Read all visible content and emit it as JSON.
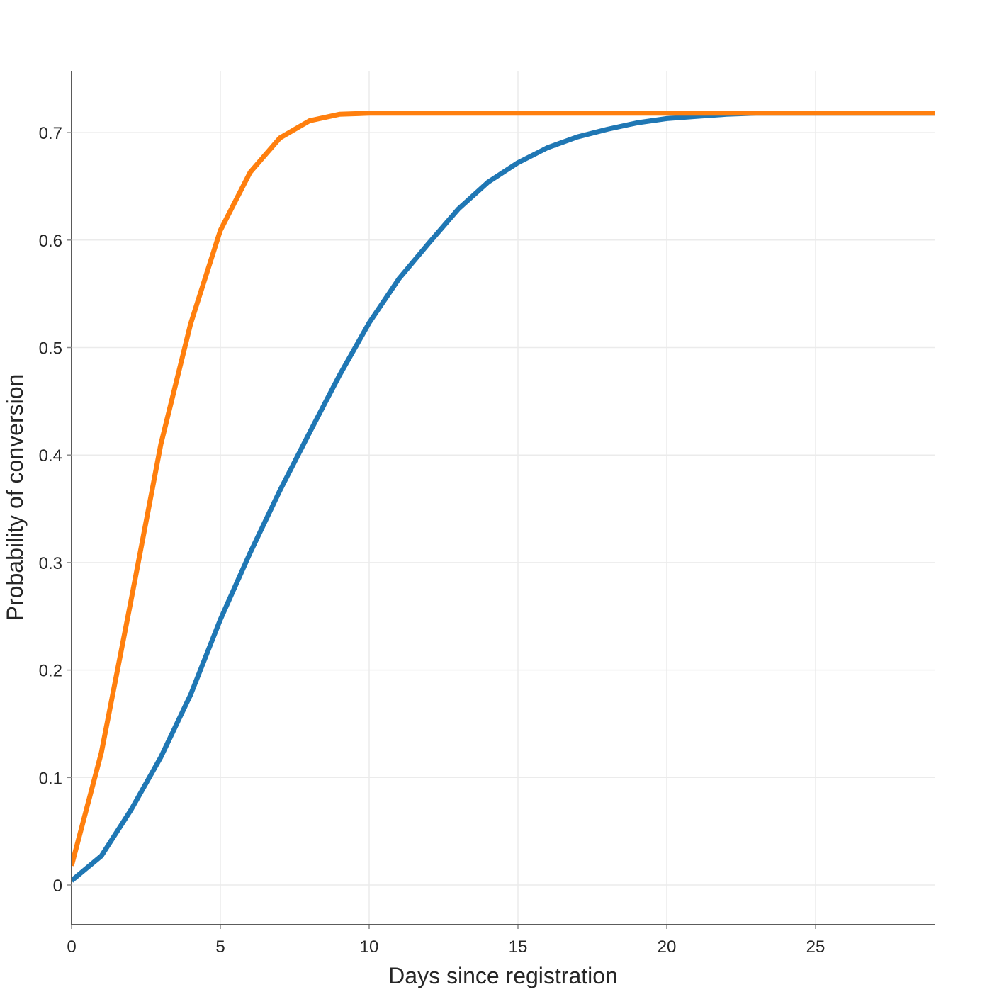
{
  "chart_data": {
    "type": "line",
    "title": "",
    "xlabel": "Days since registration",
    "ylabel": "Probability of conversion",
    "xlim": [
      0,
      29
    ],
    "ylim": [
      -0.037,
      0.757
    ],
    "x_ticks": [
      0,
      5,
      10,
      15,
      20,
      25
    ],
    "y_ticks": [
      0,
      0.1,
      0.2,
      0.3,
      0.4,
      0.5,
      0.6,
      0.7
    ],
    "y_tick_labels": [
      "0",
      "0.1",
      "0.2",
      "0.3",
      "0.4",
      "0.5",
      "0.6",
      "0.7"
    ],
    "grid": true,
    "legend": null,
    "x": [
      0,
      1,
      2,
      3,
      4,
      5,
      6,
      7,
      8,
      9,
      10,
      11,
      12,
      13,
      14,
      15,
      16,
      17,
      18,
      19,
      20,
      21,
      22,
      23,
      24,
      25,
      26,
      27,
      28,
      29
    ],
    "series": [
      {
        "name": "blue",
        "color": "#1f77b4",
        "values": [
          0.004,
          0.027,
          0.07,
          0.119,
          0.177,
          0.247,
          0.309,
          0.367,
          0.421,
          0.474,
          0.523,
          0.564,
          0.597,
          0.629,
          0.654,
          0.672,
          0.686,
          0.696,
          0.703,
          0.709,
          0.713,
          0.715,
          0.717,
          0.718,
          0.718,
          0.718,
          0.718,
          0.718,
          0.718,
          0.718
        ]
      },
      {
        "name": "orange",
        "color": "#ff7f0e",
        "values": [
          0.018,
          0.123,
          0.265,
          0.41,
          0.522,
          0.609,
          0.663,
          0.695,
          0.711,
          0.717,
          0.718,
          0.718,
          0.718,
          0.718,
          0.718,
          0.718,
          0.718,
          0.718,
          0.718,
          0.718,
          0.718,
          0.718,
          0.718,
          0.718,
          0.718,
          0.718,
          0.718,
          0.718,
          0.718,
          0.718
        ]
      }
    ]
  }
}
